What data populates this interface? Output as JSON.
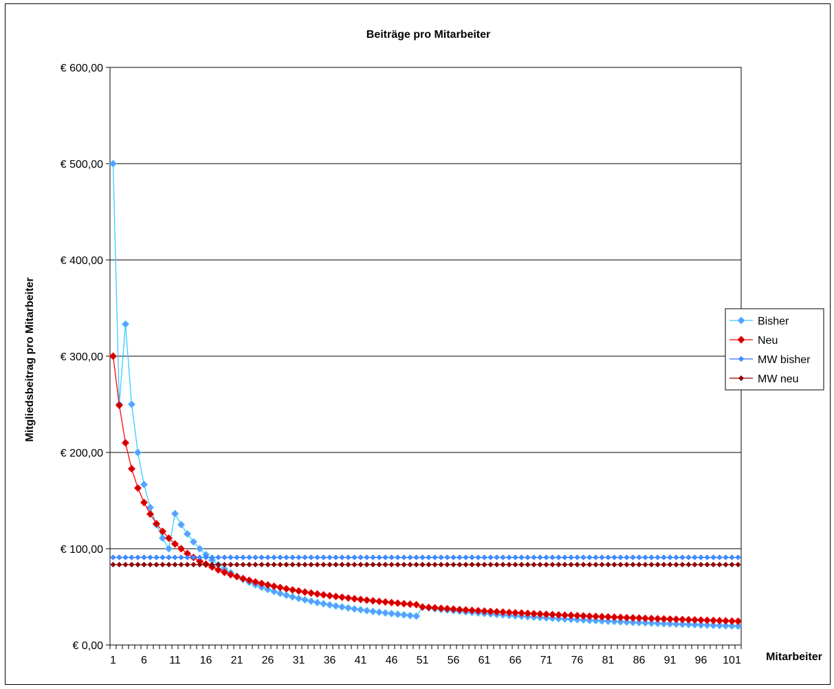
{
  "chart_data": {
    "type": "line",
    "title": "Beiträge pro Mitarbeiter",
    "xlabel": "Mitarbeiter",
    "ylabel": "Mitgliedsbeitrag pro Mitarbeiter",
    "ylim": [
      0,
      600
    ],
    "yticks": [
      0,
      100,
      200,
      300,
      400,
      500,
      600
    ],
    "ytick_labels": [
      "€ 0,00",
      "€ 100,00",
      "€ 200,00",
      "€ 300,00",
      "€ 400,00",
      "€ 500,00",
      "€ 600,00"
    ],
    "x": [
      1,
      2,
      3,
      4,
      5,
      6,
      7,
      8,
      9,
      10,
      11,
      12,
      13,
      14,
      15,
      16,
      17,
      18,
      19,
      20,
      21,
      22,
      23,
      24,
      25,
      26,
      27,
      28,
      29,
      30,
      31,
      32,
      33,
      34,
      35,
      36,
      37,
      38,
      39,
      40,
      41,
      42,
      43,
      44,
      45,
      46,
      47,
      48,
      49,
      50,
      51,
      52,
      53,
      54,
      55,
      56,
      57,
      58,
      59,
      60,
      61,
      62,
      63,
      64,
      65,
      66,
      67,
      68,
      69,
      70,
      71,
      72,
      73,
      74,
      75,
      76,
      77,
      78,
      79,
      80,
      81,
      82,
      83,
      84,
      85,
      86,
      87,
      88,
      89,
      90,
      91,
      92,
      93,
      94,
      95,
      96,
      97,
      98,
      99,
      100,
      101,
      102
    ],
    "xtick_labels": [
      "1",
      "6",
      "11",
      "16",
      "21",
      "26",
      "31",
      "36",
      "41",
      "46",
      "51",
      "56",
      "61",
      "66",
      "71",
      "76",
      "81",
      "86",
      "91",
      "96",
      "101"
    ],
    "grid": true,
    "legend_position": "right",
    "series": [
      {
        "name": "Bisher",
        "color": "#33ccff",
        "marker_fill": "#6699ff",
        "values": [
          500,
          250,
          333.3,
          250,
          200,
          166.7,
          142.9,
          125,
          111.1,
          100,
          136.4,
          125,
          115.4,
          107.1,
          100,
          93.8,
          88.2,
          83.3,
          78.9,
          75,
          71.4,
          68.2,
          65.2,
          62.5,
          60,
          57.7,
          55.6,
          53.6,
          51.7,
          50,
          48.4,
          46.9,
          45.5,
          44.1,
          42.9,
          41.7,
          40.5,
          39.5,
          38.5,
          37.5,
          36.6,
          35.7,
          34.9,
          34.1,
          33.3,
          32.6,
          31.9,
          31.3,
          30.6,
          30,
          39.2,
          38.5,
          37.7,
          37,
          36.4,
          35.7,
          35.1,
          34.5,
          33.9,
          33.3,
          32.8,
          32.3,
          31.7,
          31.3,
          30.8,
          30.3,
          29.9,
          29.4,
          29,
          28.6,
          28.2,
          27.8,
          27.4,
          27,
          26.7,
          26.3,
          26,
          25.6,
          25.3,
          25,
          24.7,
          24.4,
          24.1,
          23.8,
          23.5,
          23.3,
          23,
          22.7,
          22.5,
          22.2,
          22,
          21.7,
          21.5,
          21.3,
          21.1,
          20.8,
          20.6,
          20.4,
          20.2,
          20,
          19.8,
          19.6
        ]
      },
      {
        "name": "Neu",
        "color": "#ff0000",
        "marker_fill": "#cc0000",
        "values": [
          300,
          249,
          210,
          183,
          163,
          148,
          136,
          126,
          118,
          111,
          105,
          100,
          95,
          91,
          87,
          84,
          81,
          78,
          75.5,
          73,
          71,
          69,
          67.2,
          65.5,
          63.9,
          62.4,
          61,
          59.7,
          58.4,
          57.2,
          56.1,
          55,
          54,
          53,
          52.1,
          51.2,
          50.4,
          49.6,
          48.8,
          48,
          47.3,
          46.6,
          45.9,
          45.3,
          44.7,
          44.1,
          43.5,
          42.9,
          42.4,
          41.9,
          39.5,
          39,
          38.6,
          38.1,
          37.7,
          37.3,
          36.8,
          36.4,
          36,
          35.6,
          35.2,
          34.9,
          34.5,
          34.2,
          33.8,
          33.5,
          33.2,
          32.8,
          32.5,
          32.2,
          31.9,
          31.6,
          31.3,
          31,
          30.8,
          30.5,
          30.2,
          29.9,
          29.7,
          29.4,
          29.2,
          28.9,
          28.7,
          28.4,
          28.2,
          28,
          27.7,
          27.5,
          27.3,
          27.1,
          26.9,
          26.7,
          26.5,
          26.3,
          26.1,
          25.9,
          25.7,
          25.5,
          25.3,
          25.1,
          24.9,
          24.7
        ]
      },
      {
        "name": "MW bisher",
        "color": "#3366ff",
        "marker_fill": "#3399ff",
        "values": [
          91,
          91,
          91,
          91,
          91,
          91,
          91,
          91,
          91,
          91,
          91,
          91,
          91,
          91,
          91,
          91,
          91,
          91,
          91,
          91,
          91,
          91,
          91,
          91,
          91,
          91,
          91,
          91,
          91,
          91,
          91,
          91,
          91,
          91,
          91,
          91,
          91,
          91,
          91,
          91,
          91,
          91,
          91,
          91,
          91,
          91,
          91,
          91,
          91,
          91,
          91,
          91,
          91,
          91,
          91,
          91,
          91,
          91,
          91,
          91,
          91,
          91,
          91,
          91,
          91,
          91,
          91,
          91,
          91,
          91,
          91,
          91,
          91,
          91,
          91,
          91,
          91,
          91,
          91,
          91,
          91,
          91,
          91,
          91,
          91,
          91,
          91,
          91,
          91,
          91,
          91,
          91,
          91,
          91,
          91,
          91,
          91,
          91,
          91,
          91,
          91,
          91
        ]
      },
      {
        "name": "MW neu",
        "color": "#800000",
        "marker_fill": "#990000",
        "values": [
          83.5,
          83.5,
          83.5,
          83.5,
          83.5,
          83.5,
          83.5,
          83.5,
          83.5,
          83.5,
          83.5,
          83.5,
          83.5,
          83.5,
          83.5,
          83.5,
          83.5,
          83.5,
          83.5,
          83.5,
          83.5,
          83.5,
          83.5,
          83.5,
          83.5,
          83.5,
          83.5,
          83.5,
          83.5,
          83.5,
          83.5,
          83.5,
          83.5,
          83.5,
          83.5,
          83.5,
          83.5,
          83.5,
          83.5,
          83.5,
          83.5,
          83.5,
          83.5,
          83.5,
          83.5,
          83.5,
          83.5,
          83.5,
          83.5,
          83.5,
          83.5,
          83.5,
          83.5,
          83.5,
          83.5,
          83.5,
          83.5,
          83.5,
          83.5,
          83.5,
          83.5,
          83.5,
          83.5,
          83.5,
          83.5,
          83.5,
          83.5,
          83.5,
          83.5,
          83.5,
          83.5,
          83.5,
          83.5,
          83.5,
          83.5,
          83.5,
          83.5,
          83.5,
          83.5,
          83.5,
          83.5,
          83.5,
          83.5,
          83.5,
          83.5,
          83.5,
          83.5,
          83.5,
          83.5,
          83.5,
          83.5,
          83.5,
          83.5,
          83.5,
          83.5,
          83.5,
          83.5,
          83.5,
          83.5,
          83.5,
          83.5,
          83.5
        ]
      }
    ]
  }
}
